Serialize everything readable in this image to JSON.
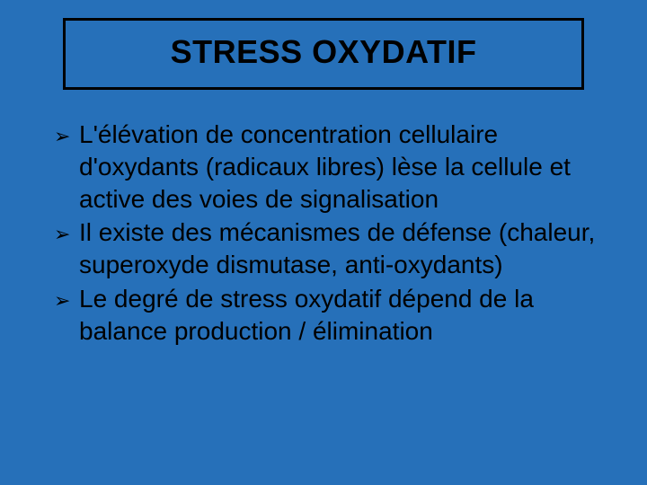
{
  "slide": {
    "background_color": "#2670b9",
    "title": {
      "text": "STRESS OXYDATIF",
      "text_color": "#000000",
      "border_color": "#000000",
      "background_color": "#2670b9",
      "font_size_pt": 36,
      "font_weight": "bold"
    },
    "body": {
      "text_color": "#000000",
      "font_size_pt": 28,
      "bullet_glyph": "➢",
      "bullet_color": "#000000",
      "items": [
        {
          "text": "L'élévation de concentration cellulaire d'oxydants (radicaux libres) lèse la cellule et active des voies de signalisation"
        },
        {
          "text": "Il existe des mécanismes de défense (chaleur, superoxyde dismutase, anti-oxydants)"
        },
        {
          "text": "Le degré de stress oxydatif dépend de la balance production / élimination"
        }
      ]
    }
  }
}
